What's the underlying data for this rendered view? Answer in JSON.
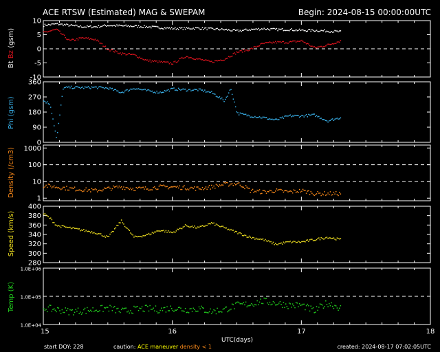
{
  "header": {
    "title": "ACE RTSW (Estimated) MAG & SWEPAM",
    "begin": "Begin: 2024-08-15 00:00:00UTC"
  },
  "footer": {
    "start_doy": "start DOY: 228",
    "caution_label": "caution:",
    "ace_maneuver": "ACE maneuver",
    "density_note": "density < 1",
    "created": "created: 2024-08-17 07:02:05UTC"
  },
  "colors": {
    "bg": "#000000",
    "axis": "#ffffff",
    "bt": "#ffffff",
    "bz": "#e0141e",
    "phi": "#3ab4ee",
    "density": "#ff8c1a",
    "speed": "#f0e020",
    "temp": "#22d21e",
    "maneuver": "#ffff00",
    "density_note": "#ff8c1a"
  },
  "chart_data": [
    {
      "type": "scatter",
      "id": "mag",
      "ylabel_parts": [
        "Bt",
        "Bz",
        "(gsm)"
      ],
      "ylim": [
        -10,
        10
      ],
      "yticks": [
        10,
        5,
        0,
        -5,
        -10
      ],
      "ytick_labels": [
        "10",
        "5",
        "0",
        "-5",
        "-10"
      ],
      "dashed_at": [
        0
      ],
      "xlim": [
        15,
        18
      ],
      "series": [
        {
          "name": "Bt",
          "color": "#ffffff",
          "x": [
            15.0,
            15.1,
            15.2,
            15.3,
            15.4,
            15.5,
            15.6,
            15.7,
            15.8,
            15.9,
            16.0,
            16.1,
            16.2,
            16.3,
            16.4,
            16.5,
            16.6,
            16.7,
            16.8,
            16.9,
            17.0,
            17.1,
            17.2,
            17.3
          ],
          "values": [
            8.5,
            9.0,
            8.5,
            8.0,
            8.0,
            8.5,
            8.3,
            8.2,
            8.0,
            7.7,
            7.4,
            7.4,
            7.5,
            7.2,
            7.0,
            6.5,
            7.0,
            7.3,
            7.0,
            7.0,
            6.7,
            6.7,
            6.5,
            6.2
          ]
        },
        {
          "name": "Bz",
          "color": "#e0141e",
          "x": [
            15.0,
            15.1,
            15.2,
            15.3,
            15.4,
            15.5,
            15.6,
            15.7,
            15.8,
            15.9,
            16.0,
            16.1,
            16.2,
            16.3,
            16.4,
            16.5,
            16.6,
            16.7,
            16.8,
            16.9,
            17.0,
            17.1,
            17.2,
            17.3
          ],
          "values": [
            6.0,
            7.0,
            3.0,
            4.0,
            3.5,
            0.0,
            -1.5,
            -2.0,
            -4.0,
            -4.5,
            -5.0,
            -2.5,
            -3.5,
            -4.5,
            -3.5,
            -1.0,
            0.0,
            2.0,
            2.5,
            2.5,
            3.0,
            0.5,
            1.5,
            3.0
          ]
        }
      ]
    },
    {
      "type": "scatter",
      "id": "phi",
      "ylabel_parts": [
        "Phi (gsm)"
      ],
      "ylim": [
        0,
        360
      ],
      "yticks": [
        360,
        270,
        180,
        90,
        0
      ],
      "ytick_labels": [
        "360",
        "270",
        "180",
        "90",
        "0"
      ],
      "dashed_at": [],
      "xlim": [
        15,
        18
      ],
      "series": [
        {
          "name": "Phi",
          "color": "#3ab4ee",
          "x": [
            15.0,
            15.05,
            15.1,
            15.15,
            15.2,
            15.3,
            15.4,
            15.5,
            15.6,
            15.7,
            15.8,
            15.9,
            16.0,
            16.1,
            16.2,
            16.3,
            16.4,
            16.45,
            16.5,
            16.6,
            16.7,
            16.8,
            16.9,
            17.0,
            17.1,
            17.2,
            17.3
          ],
          "values": [
            250,
            230,
            20,
            325,
            330,
            328,
            330,
            325,
            300,
            325,
            310,
            300,
            320,
            315,
            315,
            300,
            250,
            320,
            175,
            160,
            150,
            135,
            160,
            160,
            165,
            130,
            150
          ]
        }
      ]
    },
    {
      "type": "scatter",
      "id": "density",
      "ylabel_parts": [
        "Density (/cm3)"
      ],
      "yscale": "log",
      "ylim": [
        0.7,
        1500
      ],
      "yticks": [
        1000,
        100,
        10,
        1
      ],
      "ytick_labels": [
        "1000",
        "100",
        "10",
        "1"
      ],
      "dashed_at": [
        100,
        10
      ],
      "xlim": [
        15,
        18
      ],
      "series": [
        {
          "name": "Density",
          "color": "#ff8c1a",
          "x": [
            15.0,
            15.1,
            15.2,
            15.3,
            15.4,
            15.5,
            15.6,
            15.7,
            15.8,
            15.9,
            16.0,
            16.1,
            16.2,
            16.3,
            16.4,
            16.5,
            16.6,
            16.7,
            16.8,
            16.9,
            17.0,
            17.1,
            17.2,
            17.3
          ],
          "values": [
            6,
            5,
            4,
            3.5,
            3,
            4,
            5,
            4,
            4,
            5,
            5,
            4.5,
            4,
            5,
            7,
            8,
            3,
            2.5,
            3,
            2.5,
            3,
            2,
            2,
            2
          ]
        }
      ]
    },
    {
      "type": "scatter",
      "id": "speed",
      "ylabel_parts": [
        "Speed (km/s)"
      ],
      "ylim": [
        280,
        400
      ],
      "yticks": [
        400,
        380,
        360,
        340,
        320,
        300,
        280
      ],
      "ytick_labels": [
        "400",
        "380",
        "360",
        "340",
        "320",
        "300",
        "280"
      ],
      "dashed_at": [],
      "xlim": [
        15,
        18
      ],
      "series": [
        {
          "name": "Speed",
          "color": "#f0e020",
          "x": [
            15.0,
            15.05,
            15.1,
            15.2,
            15.3,
            15.4,
            15.5,
            15.6,
            15.7,
            15.8,
            15.9,
            16.0,
            16.1,
            16.2,
            16.3,
            16.4,
            16.5,
            16.6,
            16.7,
            16.8,
            16.9,
            17.0,
            17.1,
            17.2,
            17.3
          ],
          "values": [
            385,
            375,
            360,
            355,
            350,
            345,
            335,
            370,
            335,
            340,
            350,
            345,
            360,
            355,
            365,
            355,
            345,
            335,
            330,
            320,
            325,
            325,
            330,
            335,
            330
          ]
        }
      ]
    },
    {
      "type": "scatter",
      "id": "temp",
      "ylabel_parts": [
        "Temp (K)"
      ],
      "yscale": "log",
      "ylim": [
        10000,
        1000000
      ],
      "yticks": [
        1000000,
        100000,
        10000
      ],
      "ytick_labels": [
        "1.0E+06",
        "1.0E+05",
        "1.0E+04"
      ],
      "dashed_at": [
        100000
      ],
      "xlim": [
        15,
        18
      ],
      "series": [
        {
          "name": "Temp",
          "color": "#22d21e",
          "x": [
            15.0,
            15.1,
            15.2,
            15.3,
            15.4,
            15.5,
            15.6,
            15.7,
            15.8,
            15.9,
            16.0,
            16.1,
            16.2,
            16.3,
            16.4,
            16.5,
            16.6,
            16.7,
            16.8,
            16.9,
            17.0,
            17.1,
            17.2,
            17.3
          ],
          "values": [
            40000,
            35000,
            30000,
            32000,
            35000,
            40000,
            30000,
            35000,
            38000,
            35000,
            40000,
            35000,
            38000,
            30000,
            35000,
            50000,
            55000,
            70000,
            60000,
            50000,
            50000,
            30000,
            60000,
            40000
          ]
        }
      ]
    }
  ],
  "xaxis": {
    "label": "UTC(days)",
    "ticks": [
      15,
      16,
      17,
      18
    ],
    "tick_labels": [
      "15",
      "16",
      "17",
      "18"
    ],
    "minor_step": 0.125
  }
}
